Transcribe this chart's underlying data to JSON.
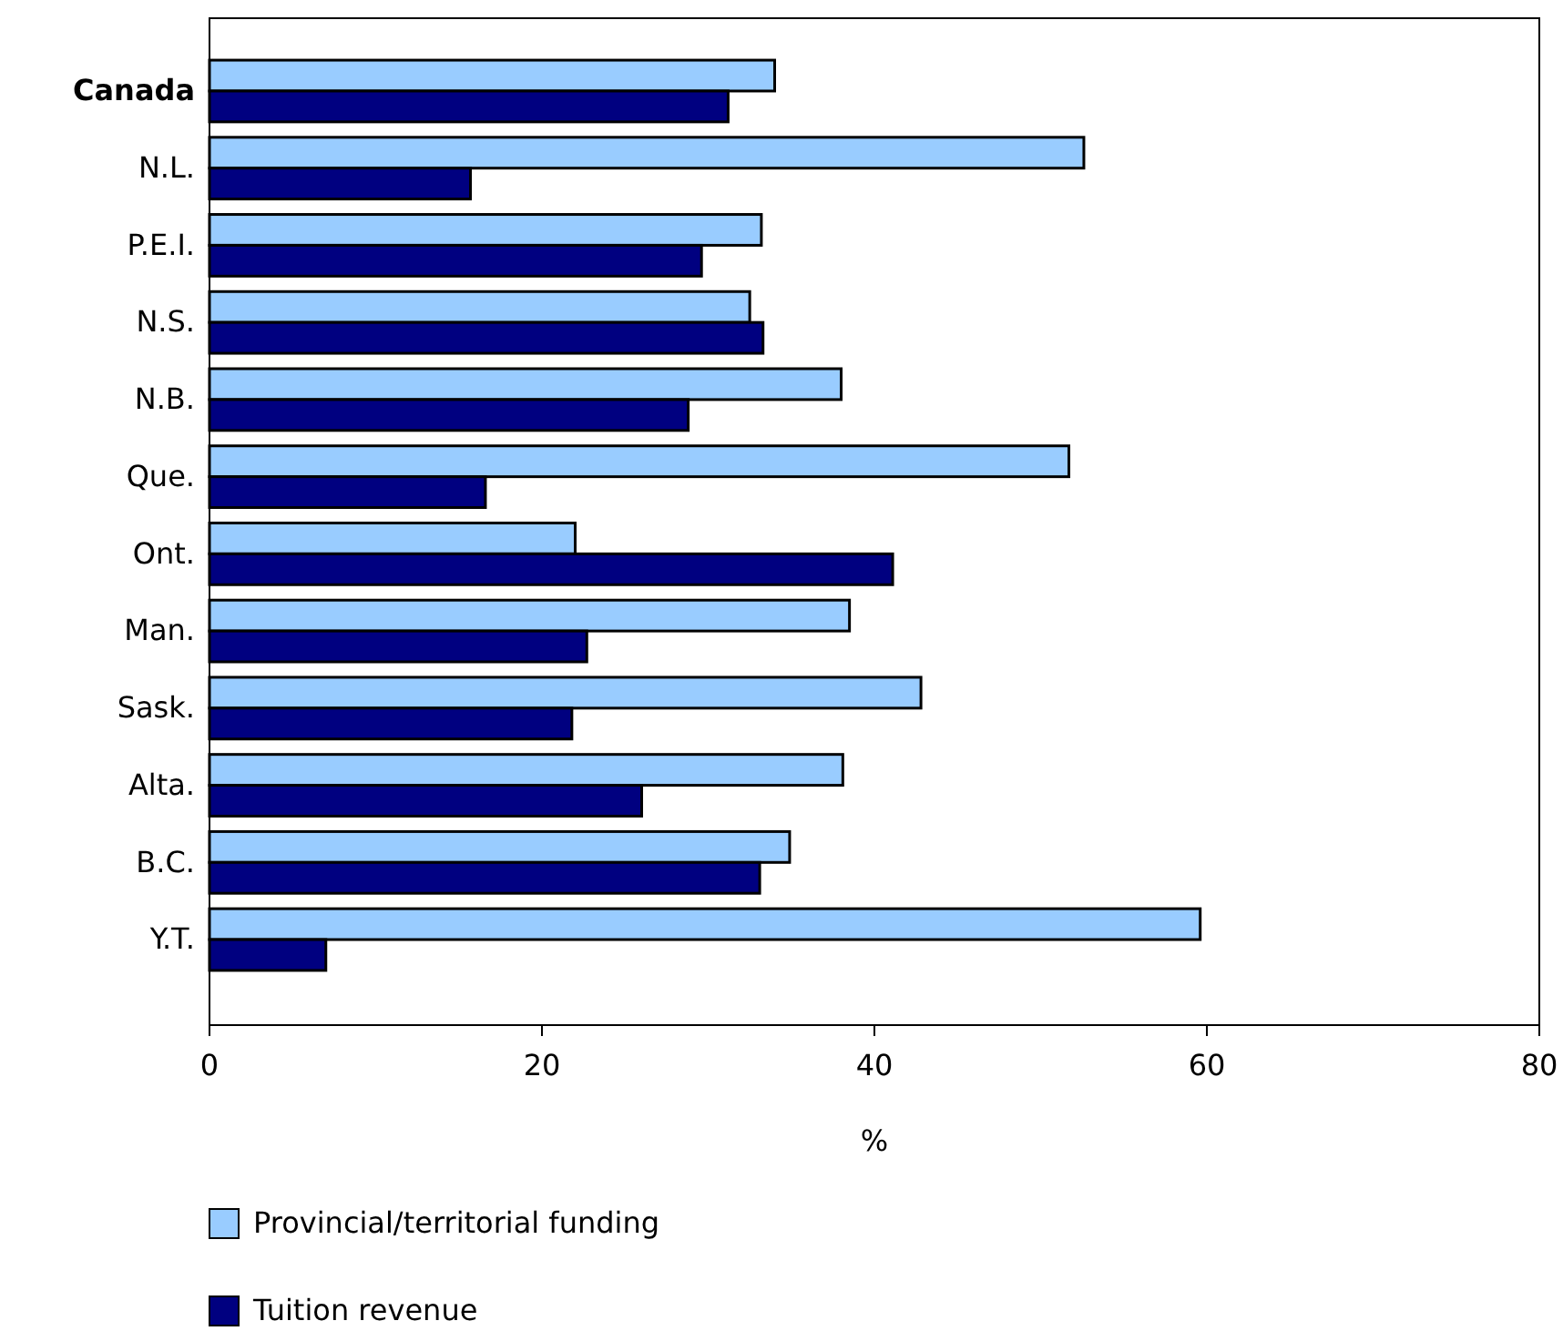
{
  "chart_data": {
    "type": "bar",
    "orientation": "horizontal",
    "xlabel": "%",
    "categories": [
      "Canada",
      "N.L.",
      "P.E.I.",
      "N.S.",
      "N.B.",
      "Que.",
      "Ont.",
      "Man.",
      "Sask.",
      "Alta.",
      "B.C.",
      "Y.T."
    ],
    "series": [
      {
        "name": "Provincial/territorial funding",
        "color": "#99ccff",
        "values": [
          34.0,
          52.6,
          33.2,
          32.5,
          38.0,
          51.7,
          22.0,
          38.5,
          42.8,
          38.1,
          34.9,
          59.6
        ]
      },
      {
        "name": "Tuition revenue",
        "color": "#000080",
        "values": [
          31.2,
          15.7,
          29.6,
          33.3,
          28.8,
          16.6,
          41.1,
          22.7,
          21.8,
          26.0,
          33.1,
          7.0
        ]
      }
    ],
    "xlim": [
      0,
      80
    ],
    "xticks": [
      0,
      20,
      40,
      60,
      80
    ],
    "grid": false,
    "legend": "bottom"
  }
}
